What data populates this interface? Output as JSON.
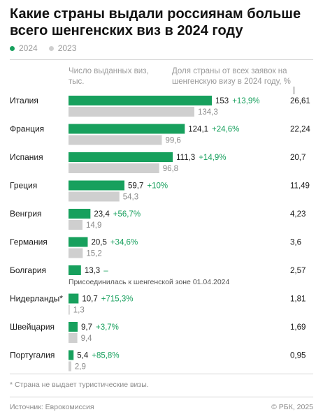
{
  "title": "Какие страны выдали россиянам больше всего шенгенских виз в 2024 году",
  "legend": {
    "current_label": "2024",
    "previous_label": "2023"
  },
  "colors": {
    "current": "#17a05d",
    "previous": "#cfcfcf",
    "change": "#17a05d"
  },
  "columns": {
    "visas_header": "Число выданных виз, тыс.",
    "share_header": "Доля страны от всех заявок на шенгенскую визу в 2024 году, %"
  },
  "chart_data": {
    "type": "bar",
    "orientation": "horizontal",
    "categories": [
      "Италия",
      "Франция",
      "Испания",
      "Греция",
      "Венгрия",
      "Германия",
      "Болгария",
      "Нидерланды*",
      "Швейцария",
      "Португалия"
    ],
    "series": [
      {
        "name": "2024",
        "values": [
          153,
          124.1,
          111.3,
          59.7,
          23.4,
          20.5,
          13.3,
          10.7,
          9.7,
          5.4
        ],
        "labels": [
          "153",
          "124,1",
          "111,3",
          "59,7",
          "23,4",
          "20,5",
          "13,3",
          "10,7",
          "9,7",
          "5,4"
        ]
      },
      {
        "name": "2023",
        "values": [
          134.3,
          99.6,
          96.8,
          54.3,
          14.9,
          15.2,
          null,
          1.3,
          9.4,
          2.9
        ],
        "labels": [
          "134,3",
          "99,6",
          "96,8",
          "54,3",
          "14,9",
          "15,2",
          null,
          "1,3",
          "9,4",
          "2,9"
        ]
      }
    ],
    "changes": [
      "+13,9%",
      "+24,6%",
      "+14,9%",
      "+10%",
      "+56,7%",
      "+34,6%",
      "–",
      "+715,3%",
      "+3,7%",
      "+85,8%"
    ],
    "shares": [
      "26,61",
      "22,24",
      "20,7",
      "11,49",
      "4,23",
      "3,6",
      "2,57",
      "1,81",
      "1,69",
      "0,95"
    ],
    "notes": [
      null,
      null,
      null,
      null,
      null,
      null,
      "Присоединилась к шенгенской зоне 01.04.2024",
      null,
      null,
      null
    ],
    "xlim": [
      0,
      153
    ]
  },
  "footnote": "* Страна не выдает туристические визы.",
  "source": "Источник: Еврокомиссия",
  "copyright": "© РБК, 2025"
}
